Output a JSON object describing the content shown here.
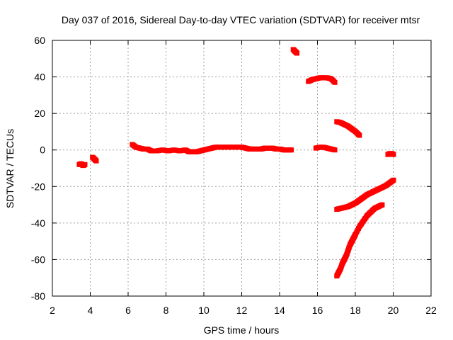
{
  "chart_data": {
    "type": "scatter",
    "title": "Day 037 of 2016, Sidereal Day-to-day VTEC variation (SDTVAR) for receiver mtsr",
    "xlabel": "GPS time / hours",
    "ylabel": "SDTVAR / TECUs",
    "xlim": [
      2,
      22
    ],
    "ylim": [
      -80,
      60
    ],
    "x_ticks": [
      2,
      4,
      6,
      8,
      10,
      12,
      14,
      16,
      18,
      20,
      22
    ],
    "y_ticks": [
      -80,
      -60,
      -40,
      -20,
      0,
      20,
      40,
      60
    ],
    "grid": true,
    "legend": "none",
    "color": "#ff0000",
    "series": [
      {
        "x": [
          3.4,
          3.5,
          3.6,
          3.7
        ],
        "y": [
          -8,
          -7.5,
          -8.5,
          -8
        ]
      },
      {
        "x": [
          4.1,
          4.2,
          4.3
        ],
        "y": [
          -4,
          -5,
          -6
        ]
      },
      {
        "x": [
          6.2,
          6.4,
          6.6,
          6.8,
          7.0,
          7.2,
          7.5,
          7.8,
          8.1,
          8.4,
          8.7,
          9.0,
          9.2,
          9.4,
          9.6,
          9.8,
          10.0,
          10.2,
          10.4,
          10.6,
          10.8,
          11.0,
          11.2,
          11.4,
          11.6,
          11.8,
          12.0,
          12.2,
          12.4,
          12.6,
          12.8,
          13.0,
          13.2,
          13.4,
          13.6,
          13.8,
          14.0,
          14.2,
          14.4,
          14.6
        ],
        "y": [
          3,
          1.5,
          1,
          0.5,
          0.5,
          -0.5,
          -0.5,
          0,
          -0.5,
          0,
          -0.5,
          0,
          -1,
          -1,
          -1,
          -0.5,
          0,
          0.5,
          1,
          1.5,
          1.5,
          1.5,
          1.5,
          1.5,
          1.5,
          1.5,
          1.5,
          1,
          0.5,
          0.5,
          0.5,
          0.5,
          1,
          1,
          1,
          0.5,
          0.5,
          0,
          0,
          0
        ]
      },
      {
        "x": [
          14.7,
          14.8,
          14.9
        ],
        "y": [
          55,
          54,
          53
        ]
      },
      {
        "x": [
          15.5,
          15.7,
          15.9,
          16.1,
          16.3,
          16.5,
          16.7,
          16.9
        ],
        "y": [
          37.5,
          38.5,
          39,
          39.5,
          39.5,
          39.5,
          39,
          37
        ]
      },
      {
        "x": [
          15.9,
          16.1,
          16.3,
          16.5,
          16.7,
          16.9
        ],
        "y": [
          1,
          1.5,
          1.5,
          1,
          0.5,
          0
        ]
      },
      {
        "x": [
          17.0,
          17.2,
          17.4,
          17.6,
          17.8,
          18.0,
          18.2
        ],
        "y": [
          15.5,
          15,
          14,
          13,
          11.5,
          10,
          8
        ]
      },
      {
        "x": [
          17.0,
          17.2,
          17.4,
          17.6,
          17.8,
          18.0,
          18.2,
          18.4,
          18.6,
          18.8,
          19.0,
          19.2,
          19.4,
          19.6,
          19.8,
          20.0
        ],
        "y": [
          -32.5,
          -32,
          -31.5,
          -31,
          -30,
          -29,
          -27.5,
          -26,
          -24.5,
          -23.5,
          -22.5,
          -21.5,
          -20.5,
          -19.5,
          -18,
          -16.5
        ]
      },
      {
        "x": [
          17.0,
          17.1,
          17.2,
          17.3,
          17.4,
          17.5,
          17.6,
          17.7,
          17.8,
          17.9,
          18.0,
          18.2,
          18.4,
          18.6,
          18.8,
          19.0,
          19.2,
          19.4
        ],
        "y": [
          -69,
          -67,
          -65,
          -62,
          -60,
          -58,
          -55,
          -52,
          -50,
          -48,
          -46,
          -42,
          -39,
          -36,
          -34,
          -32,
          -31,
          -30
        ]
      },
      {
        "x": [
          19.7,
          19.8,
          19.9,
          20.0
        ],
        "y": [
          -2.5,
          -2,
          -2,
          -2.5
        ]
      }
    ]
  }
}
